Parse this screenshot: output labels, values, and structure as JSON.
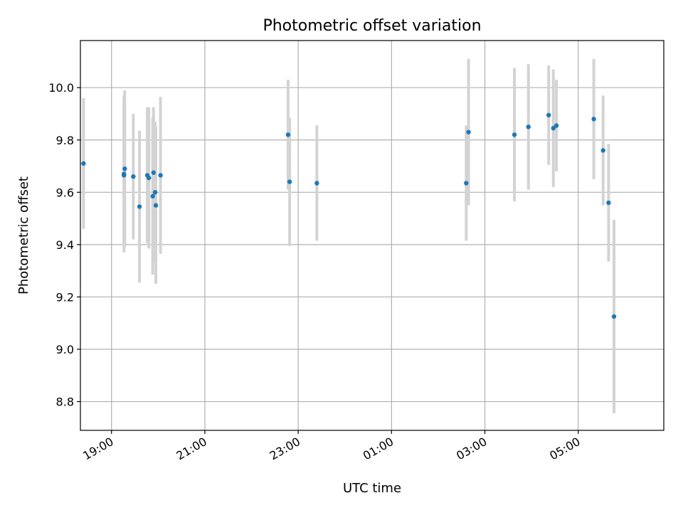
{
  "chart_data": {
    "type": "scatter",
    "title": "Photometric offset variation",
    "xlabel": "UTC time",
    "ylabel": "Photometric offset",
    "xlim": [
      "18:20",
      "06:50"
    ],
    "ylim": [
      8.69,
      10.18
    ],
    "x_tick_labels": [
      "19:00",
      "21:00",
      "23:00",
      "01:00",
      "03:00",
      "05:00"
    ],
    "y_tick_labels": [
      "8.8",
      "9.0",
      "9.2",
      "9.4",
      "9.6",
      "9.8",
      "10.0"
    ],
    "grid": true,
    "marker_color": "#1f77b4",
    "errorbar_color": "#d3d3d3",
    "points": [
      {
        "time": "18:24",
        "value": 9.71,
        "err": 0.25
      },
      {
        "time": "19:16",
        "value": 9.665,
        "err": 0.27
      },
      {
        "time": "19:16",
        "value": 9.67,
        "err": 0.3
      },
      {
        "time": "19:17",
        "value": 9.69,
        "err": 0.3
      },
      {
        "time": "19:28",
        "value": 9.66,
        "err": 0.24
      },
      {
        "time": "19:36",
        "value": 9.545,
        "err": 0.29
      },
      {
        "time": "19:46",
        "value": 9.665,
        "err": 0.26
      },
      {
        "time": "19:48",
        "value": 9.655,
        "err": 0.27
      },
      {
        "time": "19:53",
        "value": 9.585,
        "err": 0.3
      },
      {
        "time": "19:54",
        "value": 9.675,
        "err": 0.25
      },
      {
        "time": "19:56",
        "value": 9.6,
        "err": 0.27
      },
      {
        "time": "19:57",
        "value": 9.55,
        "err": 0.3
      },
      {
        "time": "20:03",
        "value": 9.665,
        "err": 0.3
      },
      {
        "time": "22:47",
        "value": 9.82,
        "err": 0.21
      },
      {
        "time": "22:49",
        "value": 9.64,
        "err": 0.245
      },
      {
        "time": "23:24",
        "value": 9.635,
        "err": 0.22
      },
      {
        "time": "02:36",
        "value": 9.635,
        "err": 0.22
      },
      {
        "time": "02:39",
        "value": 9.83,
        "err": 0.28
      },
      {
        "time": "03:38",
        "value": 9.82,
        "err": 0.255
      },
      {
        "time": "03:56",
        "value": 9.85,
        "err": 0.24
      },
      {
        "time": "04:22",
        "value": 9.895,
        "err": 0.19
      },
      {
        "time": "04:28",
        "value": 9.845,
        "err": 0.225
      },
      {
        "time": "04:32",
        "value": 9.855,
        "err": 0.175
      },
      {
        "time": "05:20",
        "value": 9.88,
        "err": 0.23
      },
      {
        "time": "05:32",
        "value": 9.76,
        "err": 0.21
      },
      {
        "time": "05:39",
        "value": 9.56,
        "err": 0.225
      },
      {
        "time": "05:46",
        "value": 9.125,
        "err": 0.37
      }
    ]
  }
}
